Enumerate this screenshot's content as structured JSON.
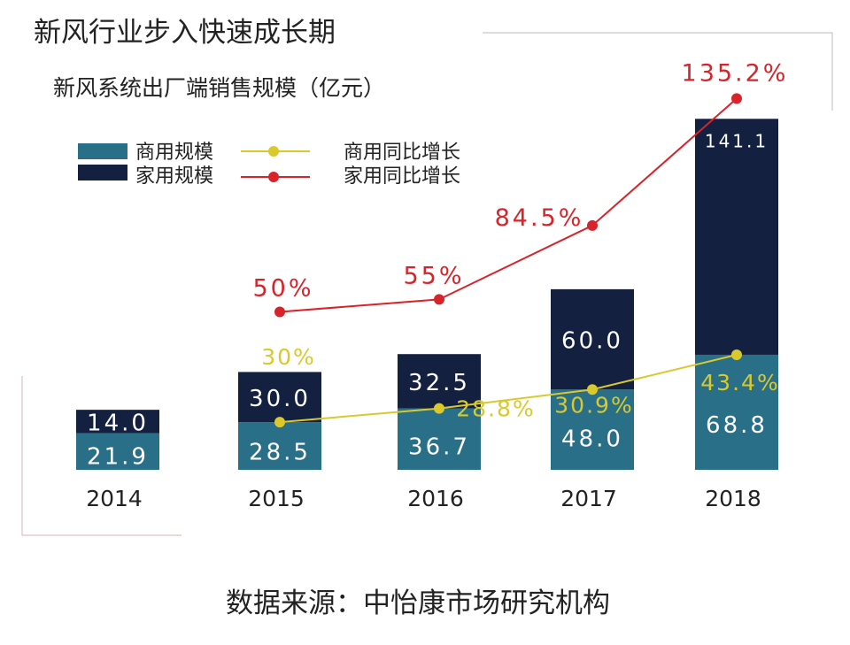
{
  "chart_data": {
    "type": "bar",
    "title": "新风行业步入快速成长期",
    "subtitle": "新风系统出厂端销售规模（亿元）",
    "categories": [
      "2014",
      "2015",
      "2016",
      "2017",
      "2018"
    ],
    "stacked": true,
    "series": [
      {
        "name": "商用规模",
        "kind": "bar",
        "color": "#2a6f88",
        "values": [
          21.9,
          28.5,
          36.7,
          48.0,
          68.8
        ],
        "labels": [
          "21.9",
          "28.5",
          "36.7",
          "48.0",
          "68.8"
        ]
      },
      {
        "name": "家用规模",
        "kind": "bar",
        "color": "#142040",
        "values": [
          14.0,
          30.0,
          32.5,
          60.0,
          141.1
        ],
        "labels": [
          "14.0",
          "30.0",
          "32.5",
          "60.0",
          "141.1"
        ]
      },
      {
        "name": "商用同比增长",
        "kind": "line",
        "color": "#d9c92c",
        "values": [
          null,
          30,
          28.8,
          30.9,
          43.4
        ],
        "labels": [
          "",
          "30%",
          "28.8%",
          "30.9%",
          "43.4%"
        ]
      },
      {
        "name": "家用同比增长",
        "kind": "line",
        "color": "#d8232a",
        "values": [
          null,
          50,
          55,
          84.5,
          135.2
        ],
        "labels": [
          "",
          "50%",
          "55%",
          "84.5%",
          "135.2%"
        ]
      }
    ],
    "legend": "top-left",
    "grid": false,
    "source": "数据来源：中怡康市场研究机构"
  }
}
